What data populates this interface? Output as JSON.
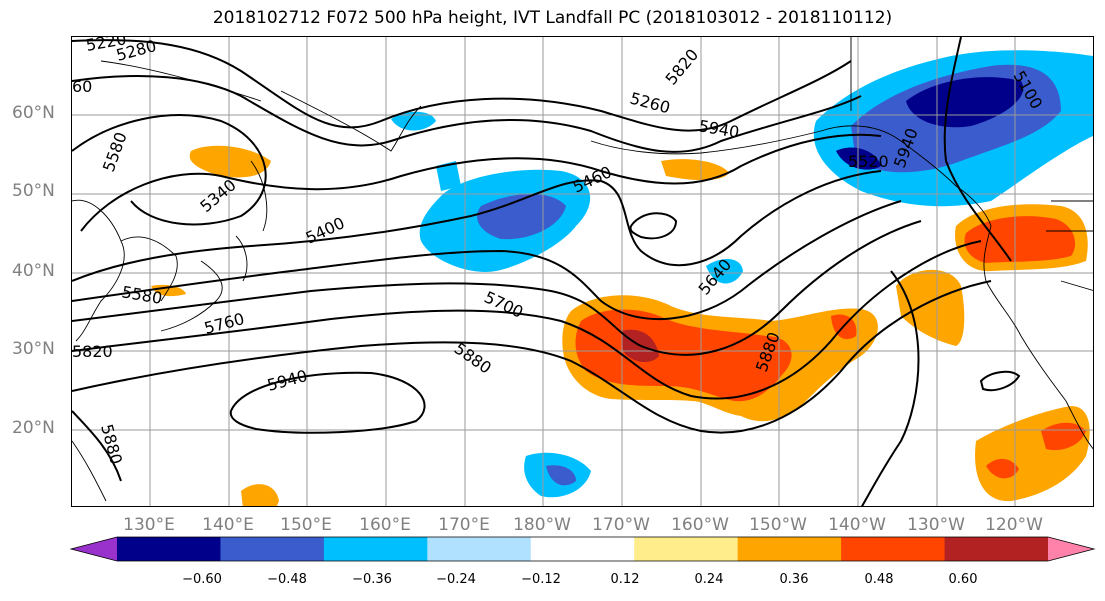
{
  "title": "2018102712 F072 500 hPa height, IVT Landfall PC (2018103012 - 2018110112)",
  "lat_labels": [
    "60°N",
    "50°N",
    "40°N",
    "30°N",
    "20°N"
  ],
  "lon_labels": [
    "130°E",
    "140°E",
    "150°E",
    "160°E",
    "170°E",
    "180°W",
    "170°W",
    "160°W",
    "150°W",
    "140°W",
    "130°W",
    "120°W"
  ],
  "contour_labels": [
    "5220",
    "5280",
    "5580",
    "5340",
    "5400",
    "5580",
    "5760",
    "5820",
    "5940",
    "5880",
    "5700",
    "5880",
    "5460",
    "5640",
    "5880",
    "5260",
    "5940",
    "5520",
    "5820",
    "5100",
    "60",
    "5940"
  ],
  "colorbar": {
    "ticks": [
      "−0.60",
      "−0.48",
      "−0.36",
      "−0.24",
      "−0.12",
      "0.12",
      "0.24",
      "0.36",
      "0.48",
      "0.60"
    ],
    "colors": [
      "#9932CC",
      "#00008B",
      "#3A5CCC",
      "#00BFFF",
      "#B0E2FF",
      "#FFFFFF",
      "#FFEC8B",
      "#FFA500",
      "#FF4500",
      "#B22222",
      "#FF82AB"
    ]
  }
}
